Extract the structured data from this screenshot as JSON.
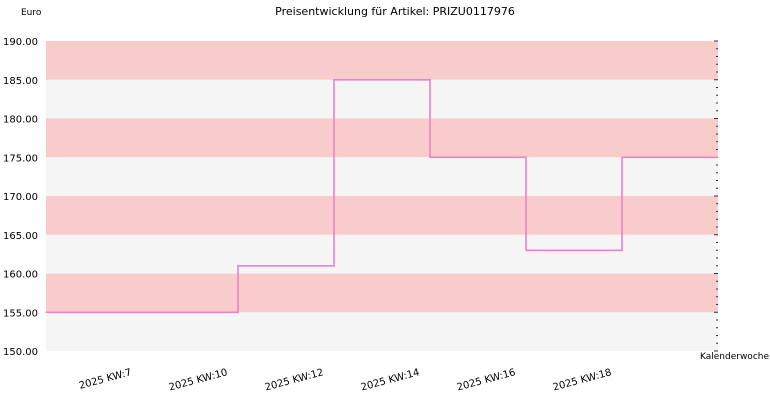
{
  "chart_data": {
    "type": "line",
    "title": "Preisentwicklung für Artikel: PRIZU0117976",
    "ylabel": "Euro",
    "xlabel": "Kalenderwoche",
    "ylim": [
      150,
      190
    ],
    "y_ticks": [
      "150.00",
      "155.00",
      "160.00",
      "165.00",
      "170.00",
      "175.00",
      "180.00",
      "185.00",
      "190.00"
    ],
    "x_tick_labels": [
      "2025 KW:7",
      "2025 KW:10",
      "2025 KW:12",
      "2025 KW:14",
      "2025 KW:16",
      "2025 KW:18"
    ],
    "step": true,
    "series": [
      {
        "color": "#ee82c8",
        "points": [
          {
            "x": 0.0,
            "y": 155
          },
          {
            "x": 2.0,
            "y": 155
          },
          {
            "x": 2.0,
            "y": 161
          },
          {
            "x": 3.0,
            "y": 161
          },
          {
            "x": 3.0,
            "y": 185
          },
          {
            "x": 4.0,
            "y": 185
          },
          {
            "x": 4.0,
            "y": 175
          },
          {
            "x": 5.0,
            "y": 175
          },
          {
            "x": 5.0,
            "y": 163
          },
          {
            "x": 6.0,
            "y": 163
          },
          {
            "x": 6.0,
            "y": 175
          },
          {
            "x": 7.0,
            "y": 175
          }
        ]
      }
    ],
    "band_colors": [
      "#f9cccc",
      "#f5f5f5"
    ],
    "grid": false
  }
}
